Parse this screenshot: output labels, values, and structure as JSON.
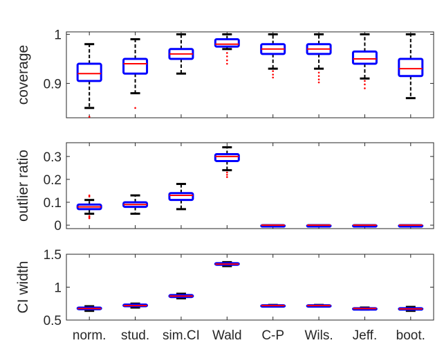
{
  "chart_data": [
    {
      "type": "box",
      "ylabel": "coverage",
      "ylim": [
        0.83,
        1.005
      ],
      "yticks": [
        0.9,
        1
      ],
      "ytick_labels": [
        "0.9",
        "1"
      ],
      "categories": [
        "norm.",
        "stud.",
        "sim.CI",
        "Wald",
        "C-P",
        "Wils.",
        "Jeff.",
        "boot."
      ],
      "boxes": [
        {
          "whisker_low": 0.85,
          "q1": 0.905,
          "median": 0.92,
          "q3": 0.94,
          "whisker_high": 0.98,
          "outliers": [
            0.832
          ]
        },
        {
          "whisker_low": 0.88,
          "q1": 0.92,
          "median": 0.94,
          "q3": 0.95,
          "whisker_high": 0.99,
          "outliers": [
            0.85
          ]
        },
        {
          "whisker_low": 0.92,
          "q1": 0.95,
          "median": 0.96,
          "q3": 0.97,
          "whisker_high": 1.0,
          "outliers": []
        },
        {
          "whisker_low": 0.97,
          "q1": 0.975,
          "median": 0.98,
          "q3": 0.99,
          "whisker_high": 1.0,
          "outliers": [
            0.962,
            0.955,
            0.947,
            0.94
          ]
        },
        {
          "whisker_low": 0.93,
          "q1": 0.96,
          "median": 0.97,
          "q3": 0.98,
          "whisker_high": 1.0,
          "outliers": [
            0.925,
            0.918,
            0.912
          ]
        },
        {
          "whisker_low": 0.93,
          "q1": 0.96,
          "median": 0.97,
          "q3": 0.98,
          "whisker_high": 1.0,
          "outliers": [
            0.922,
            0.915,
            0.908,
            0.902
          ]
        },
        {
          "whisker_low": 0.91,
          "q1": 0.94,
          "median": 0.95,
          "q3": 0.965,
          "whisker_high": 1.0,
          "outliers": [
            0.905,
            0.898,
            0.89
          ]
        },
        {
          "whisker_low": 0.87,
          "q1": 0.915,
          "median": 0.93,
          "q3": 0.95,
          "whisker_high": 1.0,
          "outliers": []
        }
      ]
    },
    {
      "type": "box",
      "ylabel": "outlier ratio",
      "ylim": [
        -0.015,
        0.36
      ],
      "yticks": [
        0,
        0.1,
        0.2,
        0.3
      ],
      "ytick_labels": [
        "0",
        "0.1",
        "0.2",
        "0.3"
      ],
      "categories": [
        "norm.",
        "stud.",
        "sim.CI",
        "Wald",
        "C-P",
        "Wils.",
        "Jeff.",
        "boot."
      ],
      "boxes": [
        {
          "whisker_low": 0.05,
          "q1": 0.07,
          "median": 0.08,
          "q3": 0.09,
          "whisker_high": 0.11,
          "outliers": [
            0.03,
            0.035,
            0.04,
            0.125,
            0.13
          ]
        },
        {
          "whisker_low": 0.05,
          "q1": 0.08,
          "median": 0.09,
          "q3": 0.1,
          "whisker_high": 0.13,
          "outliers": []
        },
        {
          "whisker_low": 0.07,
          "q1": 0.11,
          "median": 0.13,
          "q3": 0.14,
          "whisker_high": 0.18,
          "outliers": []
        },
        {
          "whisker_low": 0.24,
          "q1": 0.28,
          "median": 0.3,
          "q3": 0.31,
          "whisker_high": 0.34,
          "outliers": [
            0.21,
            0.22,
            0.23
          ]
        },
        {
          "whisker_low": 0,
          "q1": 0,
          "median": 0,
          "q3": 0,
          "whisker_high": 0,
          "outliers": []
        },
        {
          "whisker_low": 0,
          "q1": 0,
          "median": 0,
          "q3": 0,
          "whisker_high": 0,
          "outliers": []
        },
        {
          "whisker_low": 0,
          "q1": 0,
          "median": 0,
          "q3": 0,
          "whisker_high": 0,
          "outliers": []
        },
        {
          "whisker_low": 0,
          "q1": 0,
          "median": 0,
          "q3": 0,
          "whisker_high": 0,
          "outliers": []
        }
      ]
    },
    {
      "type": "box",
      "ylabel": "CI width",
      "ylim": [
        0.5,
        1.5
      ],
      "yticks": [
        0.5,
        1,
        1.5
      ],
      "ytick_labels": [
        "0.5",
        "1",
        "1.5"
      ],
      "categories": [
        "norm.",
        "stud.",
        "sim.CI",
        "Wald",
        "C-P",
        "Wils.",
        "Jeff.",
        "boot."
      ],
      "boxes": [
        {
          "whisker_low": 0.64,
          "q1": 0.665,
          "median": 0.675,
          "q3": 0.69,
          "whisker_high": 0.71,
          "outliers": []
        },
        {
          "whisker_low": 0.69,
          "q1": 0.71,
          "median": 0.72,
          "q3": 0.735,
          "whisker_high": 0.75,
          "outliers": []
        },
        {
          "whisker_low": 0.83,
          "q1": 0.85,
          "median": 0.865,
          "q3": 0.88,
          "whisker_high": 0.9,
          "outliers": []
        },
        {
          "whisker_low": 1.32,
          "q1": 1.34,
          "median": 1.35,
          "q3": 1.365,
          "whisker_high": 1.38,
          "outliers": []
        },
        {
          "whisker_low": 0.71,
          "q1": 0.715,
          "median": 0.72,
          "q3": 0.725,
          "whisker_high": 0.73,
          "outliers": []
        },
        {
          "whisker_low": 0.71,
          "q1": 0.715,
          "median": 0.72,
          "q3": 0.725,
          "whisker_high": 0.73,
          "outliers": []
        },
        {
          "whisker_low": 0.66,
          "q1": 0.67,
          "median": 0.675,
          "q3": 0.68,
          "whisker_high": 0.69,
          "outliers": []
        },
        {
          "whisker_low": 0.64,
          "q1": 0.66,
          "median": 0.67,
          "q3": 0.68,
          "whisker_high": 0.7,
          "outliers": []
        }
      ]
    }
  ],
  "colors": {
    "box": "#0000ff",
    "median": "#ff0000",
    "whisker": "#000000",
    "outlier": "#ff0000",
    "axes": "#262626"
  }
}
